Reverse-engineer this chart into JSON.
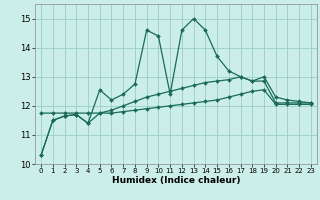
{
  "xlabel": "Humidex (Indice chaleur)",
  "bg_color": "#cceee8",
  "grid_color": "#99cccc",
  "line_color": "#1a6b5a",
  "xlim": [
    -0.5,
    23.5
  ],
  "ylim": [
    10.0,
    15.5
  ],
  "yticks": [
    10,
    11,
    12,
    13,
    14,
    15
  ],
  "xticks": [
    0,
    1,
    2,
    3,
    4,
    5,
    6,
    7,
    8,
    9,
    10,
    11,
    12,
    13,
    14,
    15,
    16,
    17,
    18,
    19,
    20,
    21,
    22,
    23
  ],
  "series1": [
    10.3,
    11.5,
    11.65,
    11.7,
    11.4,
    12.55,
    12.2,
    12.4,
    12.75,
    14.6,
    14.4,
    12.4,
    14.6,
    15.0,
    14.6,
    13.7,
    13.2,
    13.0,
    12.85,
    13.0,
    12.3,
    12.2,
    12.15,
    12.1
  ],
  "series2": [
    10.3,
    11.5,
    11.65,
    11.7,
    11.4,
    11.75,
    11.85,
    12.0,
    12.15,
    12.3,
    12.4,
    12.5,
    12.6,
    12.7,
    12.8,
    12.85,
    12.9,
    13.0,
    12.85,
    12.85,
    12.1,
    12.1,
    12.1,
    12.1
  ],
  "series3": [
    11.75,
    11.75,
    11.75,
    11.75,
    11.75,
    11.75,
    11.75,
    11.8,
    11.85,
    11.9,
    11.95,
    12.0,
    12.05,
    12.1,
    12.15,
    12.2,
    12.3,
    12.4,
    12.5,
    12.55,
    12.05,
    12.05,
    12.05,
    12.05
  ]
}
